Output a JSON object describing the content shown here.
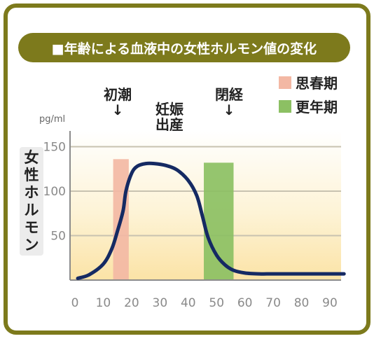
{
  "title": "■年齢による血液中の女性ホルモン値の変化",
  "unit": "pg/ml",
  "ylabel_chars": [
    "女",
    "性",
    "ホ",
    "ル",
    "モ",
    "ン"
  ],
  "annotations": {
    "menarche": "初潮",
    "pregnancy_line1": "妊娠",
    "pregnancy_line2": "出産",
    "menopause": "閉経",
    "arrow": "↓"
  },
  "legend": [
    {
      "label": "思春期",
      "color": "#f3b8a4"
    },
    {
      "label": "更年期",
      "color": "#8cc063"
    }
  ],
  "colors": {
    "frame": "#7d7a1c",
    "curve": "#152a63",
    "grid": "#c8c2b0"
  },
  "chart_data": {
    "type": "line",
    "title": "■年齢による血液中の女性ホルモン値の変化",
    "xlabel": "",
    "ylabel": "女性ホルモン",
    "unit": "pg/ml",
    "xlim": [
      0,
      95
    ],
    "ylim": [
      0,
      160
    ],
    "xticks": [
      0,
      10,
      20,
      30,
      40,
      50,
      60,
      70,
      80,
      90
    ],
    "yticks": [
      50,
      100,
      150
    ],
    "grid": true,
    "x": [
      1,
      5,
      10,
      13,
      15,
      17,
      18,
      20,
      22,
      25,
      28,
      32,
      36,
      40,
      43,
      45,
      47,
      50,
      53,
      56,
      60,
      65,
      70,
      80,
      90,
      95
    ],
    "y": [
      2,
      6,
      18,
      35,
      55,
      78,
      100,
      120,
      128,
      131,
      131,
      129,
      124,
      112,
      95,
      72,
      48,
      28,
      17,
      11,
      8,
      7,
      7,
      7,
      7,
      7
    ],
    "bands": [
      {
        "name": "思春期",
        "x0": 13.5,
        "x1": 19,
        "height": 136,
        "color": "#f3b8a4"
      },
      {
        "name": "更年期",
        "x0": 45.5,
        "x1": 56,
        "height": 132,
        "color": "#8cc063"
      }
    ]
  }
}
